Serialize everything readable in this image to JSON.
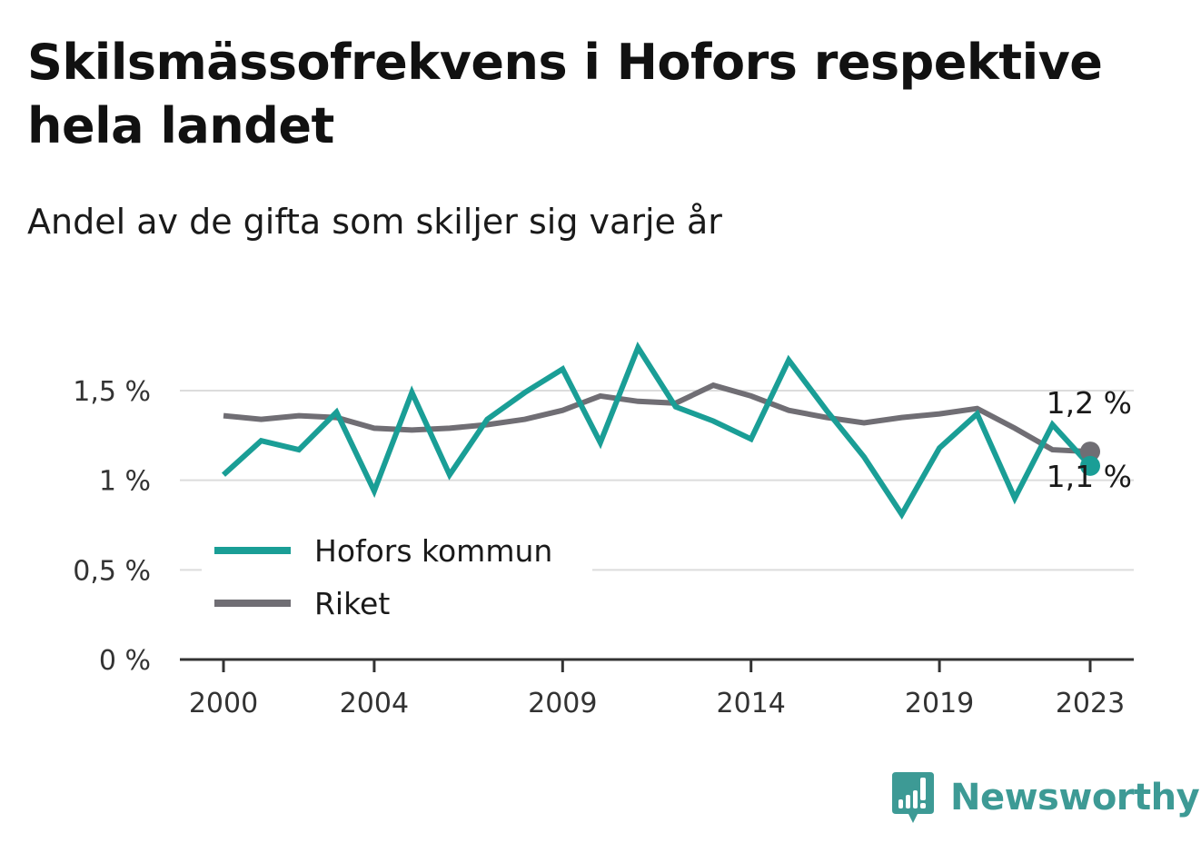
{
  "title": "Skilsmässofrekvens i Hofors respektive hela landet",
  "subtitle": "Andel av de gifta som skiljer sig varje år",
  "brand": "Newsworthy",
  "chart_data": {
    "type": "line",
    "x": [
      2000,
      2001,
      2002,
      2003,
      2004,
      2005,
      2006,
      2007,
      2008,
      2009,
      2010,
      2011,
      2012,
      2013,
      2014,
      2015,
      2016,
      2017,
      2018,
      2019,
      2020,
      2021,
      2022,
      2023
    ],
    "x_ticks": [
      2000,
      2004,
      2009,
      2014,
      2019,
      2023
    ],
    "x_tick_labels": [
      "2000",
      "2004",
      "2009",
      "2014",
      "2019",
      "2023"
    ],
    "y_ticks": [
      0,
      0.5,
      1,
      1.5
    ],
    "y_tick_labels": [
      "0 %",
      "0,5 %",
      "1 %",
      "1,5 %"
    ],
    "ylim": [
      0,
      1.88
    ],
    "grid": true,
    "legend_position": "bottom-left",
    "series": [
      {
        "name": "Hofors kommun",
        "color": "#1a9e96",
        "values": [
          1.03,
          1.22,
          1.17,
          1.38,
          0.94,
          1.49,
          1.03,
          1.34,
          1.49,
          1.62,
          1.21,
          1.74,
          1.41,
          1.33,
          1.23,
          1.67,
          1.39,
          1.13,
          0.81,
          1.18,
          1.37,
          0.9,
          1.31,
          1.08
        ],
        "end_label": "1,1 %"
      },
      {
        "name": "Riket",
        "color": "#706e74",
        "values": [
          1.36,
          1.34,
          1.36,
          1.35,
          1.29,
          1.28,
          1.29,
          1.31,
          1.34,
          1.39,
          1.47,
          1.44,
          1.43,
          1.53,
          1.47,
          1.39,
          1.35,
          1.32,
          1.35,
          1.37,
          1.4,
          1.29,
          1.17,
          1.16
        ],
        "end_label": "1,2 %"
      }
    ]
  }
}
